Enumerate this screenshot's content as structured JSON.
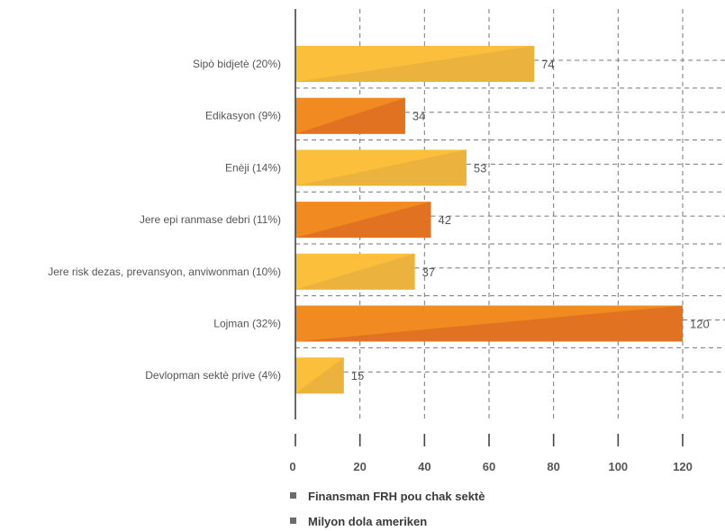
{
  "chart_data": {
    "type": "bar",
    "orientation": "horizontal",
    "categories": [
      "Sipò bidjetè (20%)",
      "Edikasyon (9%)",
      "Enèji (14%)",
      "Jere epi ranmase debri  (11%)",
      "Jere risk dezas, prevansyon, anviwonman (10%)",
      "Lojman (32%)",
      "Devlopman sektè prive (4%)"
    ],
    "values": [
      74,
      34,
      53,
      42,
      37,
      120,
      15
    ],
    "value_labels": [
      "74",
      "34",
      "53",
      "42",
      "37",
      "120",
      "15"
    ],
    "bar_colors": [
      "#fbbf3c",
      "#f28a22",
      "#fbbf3c",
      "#f28a22",
      "#fbbf3c",
      "#f28a22",
      "#fbbf3c"
    ],
    "bar_colors_dark": [
      "#ecb23e",
      "#e07222",
      "#ecb23e",
      "#e07222",
      "#ecb23e",
      "#e07222",
      "#ecb23e"
    ],
    "xlim": [
      0,
      120
    ],
    "xticks": [
      "0",
      "20",
      "40",
      "60",
      "80",
      "100",
      "120"
    ],
    "grid": true,
    "legend": [
      {
        "label": "Finansman FRH pou chak sektè",
        "color": "#6b6b6b"
      },
      {
        "label": "Milyon dola ameriken",
        "color": "#6b6b6b"
      }
    ],
    "legend_position": "bottom-left"
  }
}
